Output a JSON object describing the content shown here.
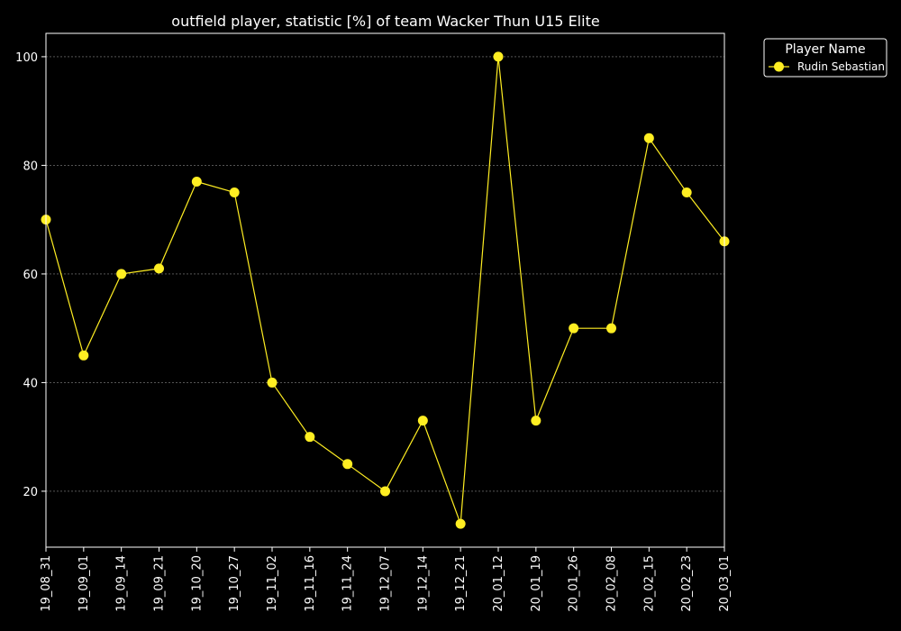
{
  "chart_data": {
    "type": "line",
    "title": "outfield player, statistic [%] of team Wacker Thun U15 Elite",
    "xlabel": "",
    "ylabel": "",
    "categories": [
      "19_08_31",
      "19_09_01",
      "19_09_14",
      "19_09_21",
      "19_10_20",
      "19_10_27",
      "19_11_02",
      "19_11_16",
      "19_11_24",
      "19_12_07",
      "19_12_14",
      "19_12_21",
      "20_01_12",
      "20_01_19",
      "20_01_26",
      "20_02_08",
      "20_02_15",
      "20_02_23",
      "20_03_01"
    ],
    "series": [
      {
        "name": "Rudin Sebastian",
        "values": [
          70,
          45,
          60,
          61,
          77,
          75,
          40,
          30,
          25,
          20,
          33,
          14,
          100,
          33,
          50,
          50,
          85,
          75,
          66
        ],
        "color": "#ffee22"
      }
    ],
    "ylim": [
      9.7,
      104.3
    ],
    "yticks": [
      20,
      40,
      60,
      80,
      100
    ],
    "grid": true,
    "legend": {
      "title": "Player Name",
      "placement": "outside-top-right"
    },
    "colors": {
      "background": "#000000",
      "axes": "#ffffff",
      "grid": "#888888",
      "line": "#ffee22"
    }
  }
}
